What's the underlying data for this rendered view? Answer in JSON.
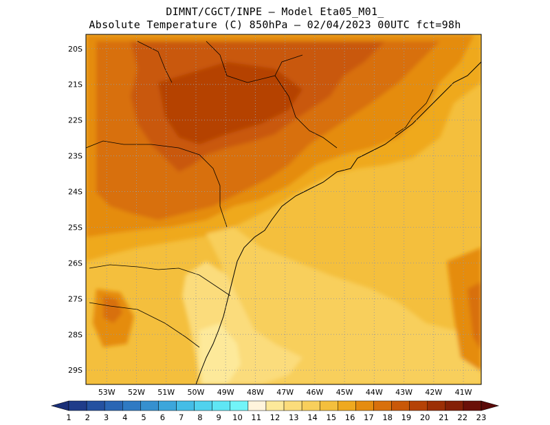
{
  "title": {
    "line1": "DIMNT/CGCT/INPE —  Model Eta05_M01_",
    "line2": "Absolute Temperature (C) 850hPa —  02/04/2023 00UTC fct=98h"
  },
  "map": {
    "lat_labels": [
      "20S",
      "21S",
      "22S",
      "23S",
      "24S",
      "25S",
      "26S",
      "27S",
      "28S",
      "29S"
    ],
    "lon_labels": [
      "53W",
      "52W",
      "51W",
      "50W",
      "49W",
      "48W",
      "47W",
      "46W",
      "45W",
      "44W",
      "43W",
      "42W",
      "41W"
    ],
    "lat_range": [
      -29.4,
      -19.6
    ],
    "lon_range": [
      -53.7,
      -40.4
    ],
    "grid": "dotted",
    "field": "temperature 850hPa, warmest (19-20C) over interior SP/MG north-west, 13-14C near SC coast south-east of 26S"
  },
  "colorbar": {
    "labels": [
      "1",
      "2",
      "3",
      "4",
      "5",
      "6",
      "7",
      "8",
      "9",
      "10",
      "11",
      "12",
      "13",
      "14",
      "15",
      "16",
      "17",
      "18",
      "19",
      "20",
      "21",
      "22",
      "23"
    ],
    "colors": [
      "#1f3c8a",
      "#2451a0",
      "#2a66b4",
      "#2f7ac3",
      "#3690cf",
      "#3ca6db",
      "#44bde6",
      "#50d2ee",
      "#5fe6f4",
      "#72f4f8",
      "#fff4dc",
      "#fde99a",
      "#fbdc7b",
      "#f8cf5c",
      "#f4bf3d",
      "#efa91f",
      "#e58c10",
      "#d8700c",
      "#c95808",
      "#b54206",
      "#9c2f05",
      "#842006",
      "#6a1008"
    ],
    "left_arrow_color": "#1a2f78",
    "right_arrow_color": "#5a0a08"
  }
}
